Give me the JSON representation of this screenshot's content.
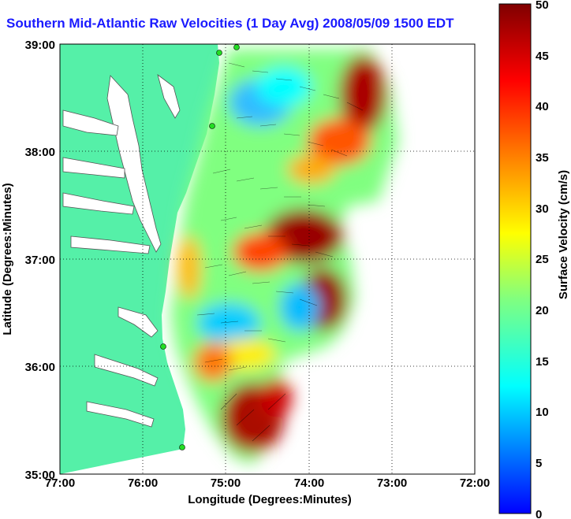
{
  "title": "Southern Mid-Atlantic Raw Velocities (1 Day Avg) 2008/05/09 1500 EDT",
  "xaxis": {
    "label": "Longitude (Degrees:Minutes)",
    "ticks": [
      "77:00",
      "76:00",
      "75:00",
      "74:00",
      "73:00",
      "72:00"
    ],
    "range": [
      -77,
      -72
    ]
  },
  "yaxis": {
    "label": "Latitude (Degrees:Minutes)",
    "ticks": [
      "39:00",
      "38:00",
      "37:00",
      "36:00",
      "35:00"
    ],
    "range": [
      35,
      39
    ]
  },
  "colorbar": {
    "label": "Surface Velocity (cm/s)",
    "ticks": [
      "50",
      "45",
      "40",
      "35",
      "30",
      "25",
      "20",
      "15",
      "10",
      "5",
      "0"
    ],
    "range": [
      0,
      50
    ],
    "colormap": "jet"
  },
  "colors": {
    "title": "#1a1aff",
    "land": "#55f0a8",
    "water": "#ffffff",
    "grid": "#000000",
    "stations": "#22dd22"
  },
  "grid": "dotted"
}
